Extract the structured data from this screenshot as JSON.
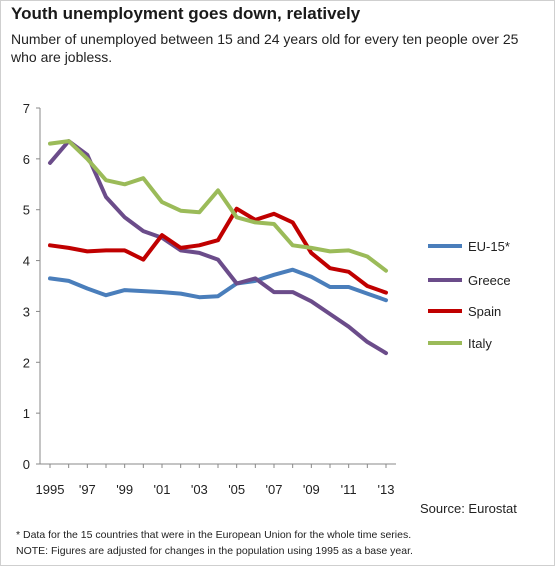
{
  "header": {
    "title": "Youth unemployment goes down, relatively",
    "subtitle": "Number  of unemployed between  15 and 24 years old for every ten people over  25 who are jobless."
  },
  "footer": {
    "source": "Source: Eurostat",
    "note1": "* Data for the 15 countries that were in the European Union for the whole time series.",
    "note2": "NOTE:  Figures are adjusted for changes in the population using 1995 as a base year."
  },
  "chart_data": {
    "type": "line",
    "title": "Youth unemployment goes down, relatively",
    "x": [
      1995,
      1996,
      1997,
      1998,
      1999,
      2000,
      2001,
      2002,
      2003,
      2004,
      2005,
      2006,
      2007,
      2008,
      2009,
      2010,
      2011,
      2012,
      2013
    ],
    "x_tick_labels": [
      "1995",
      "'97",
      "'99",
      "'01",
      "'03",
      "'05",
      "'07",
      "'09",
      "'11",
      "'13"
    ],
    "ylim": [
      0,
      7
    ],
    "y_ticks": [
      0,
      1,
      2,
      3,
      4,
      5,
      6,
      7
    ],
    "grid": "horizontal",
    "legend_position": "right",
    "series": [
      {
        "name": "EU-15*",
        "color": "#4a7ebb",
        "values": [
          3.65,
          3.6,
          3.45,
          3.32,
          3.42,
          3.4,
          3.38,
          3.35,
          3.28,
          3.3,
          3.55,
          3.6,
          3.72,
          3.82,
          3.68,
          3.48,
          3.48,
          3.35,
          3.22
        ]
      },
      {
        "name": "Greece",
        "color": "#6b4c8a",
        "values": [
          5.92,
          6.35,
          6.08,
          5.25,
          4.85,
          4.58,
          4.45,
          4.2,
          4.15,
          4.02,
          3.55,
          3.65,
          3.38,
          3.38,
          3.2,
          2.95,
          2.7,
          2.4,
          2.18
        ]
      },
      {
        "name": "Spain",
        "color": "#c00000",
        "values": [
          4.3,
          4.25,
          4.18,
          4.2,
          4.2,
          4.02,
          4.5,
          4.25,
          4.3,
          4.4,
          5.02,
          4.8,
          4.92,
          4.75,
          4.15,
          3.85,
          3.78,
          3.5,
          3.37
        ]
      },
      {
        "name": "Italy",
        "color": "#9bbb59",
        "values": [
          6.3,
          6.35,
          6.0,
          5.58,
          5.5,
          5.62,
          5.15,
          4.98,
          4.95,
          5.38,
          4.85,
          4.75,
          4.72,
          4.3,
          4.25,
          4.18,
          4.2,
          4.08,
          3.8
        ]
      }
    ]
  }
}
